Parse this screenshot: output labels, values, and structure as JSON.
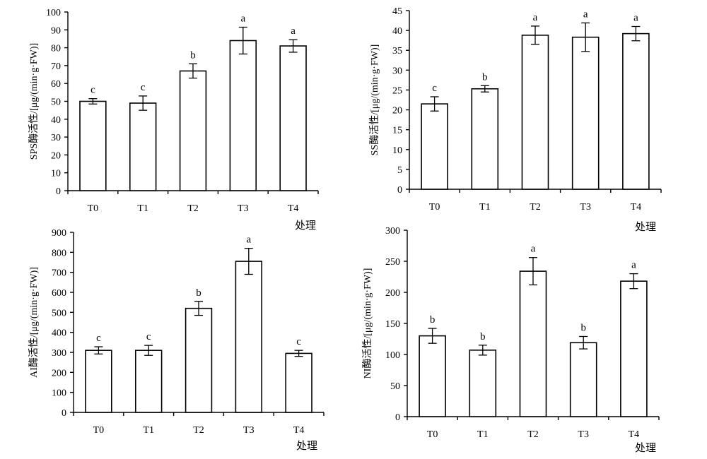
{
  "chart_data": [
    {
      "type": "bar",
      "categories": [
        "T0",
        "T1",
        "T2",
        "T3",
        "T4"
      ],
      "values": [
        50,
        49,
        67,
        84,
        81
      ],
      "errors": [
        1.5,
        4,
        4,
        7.5,
        3.5
      ],
      "significance": [
        "c",
        "c",
        "b",
        "a",
        "a"
      ],
      "ylabel": "SPS酶活性/[μg/(min·g·FW)]",
      "xlabel": "处理",
      "ylim": [
        0,
        100
      ],
      "yticks": [
        0,
        10,
        20,
        30,
        40,
        50,
        60,
        70,
        80,
        90,
        100
      ],
      "grid": false
    },
    {
      "type": "bar",
      "categories": [
        "T0",
        "T1",
        "T2",
        "T3",
        "T4"
      ],
      "values": [
        21.5,
        25.3,
        38.8,
        38.3,
        39.2
      ],
      "errors": [
        1.8,
        0.8,
        2.3,
        3.6,
        1.8
      ],
      "significance": [
        "c",
        "b",
        "a",
        "a",
        "a"
      ],
      "ylabel": "SS酶活性/[μg/(min·g·FW)]",
      "xlabel": "处理",
      "ylim": [
        0,
        45
      ],
      "yticks": [
        0,
        5,
        10,
        15,
        20,
        25,
        30,
        35,
        40,
        45
      ],
      "grid": false
    },
    {
      "type": "bar",
      "categories": [
        "T0",
        "T1",
        "T2",
        "T3",
        "T4"
      ],
      "values": [
        310,
        310,
        520,
        755,
        295
      ],
      "errors": [
        18,
        25,
        35,
        65,
        15
      ],
      "significance": [
        "c",
        "c",
        "b",
        "a",
        "c"
      ],
      "ylabel": "AI酶活性/[μg/(min·g·FW)]",
      "xlabel": "处理",
      "ylim": [
        0,
        900
      ],
      "yticks": [
        0,
        100,
        200,
        300,
        400,
        500,
        600,
        700,
        800,
        900
      ],
      "grid": false
    },
    {
      "type": "bar",
      "categories": [
        "T0",
        "T1",
        "T2",
        "T3",
        "T4"
      ],
      "values": [
        130,
        107,
        234,
        119,
        218
      ],
      "errors": [
        12,
        8,
        22,
        10,
        12
      ],
      "significance": [
        "b",
        "b",
        "a",
        "b",
        "a"
      ],
      "ylabel": "NI酶活性/[μg/(min·g·FW)]",
      "xlabel": "处理",
      "ylim": [
        0,
        300
      ],
      "yticks": [
        0,
        50,
        100,
        150,
        200,
        250,
        300
      ],
      "grid": false
    }
  ]
}
